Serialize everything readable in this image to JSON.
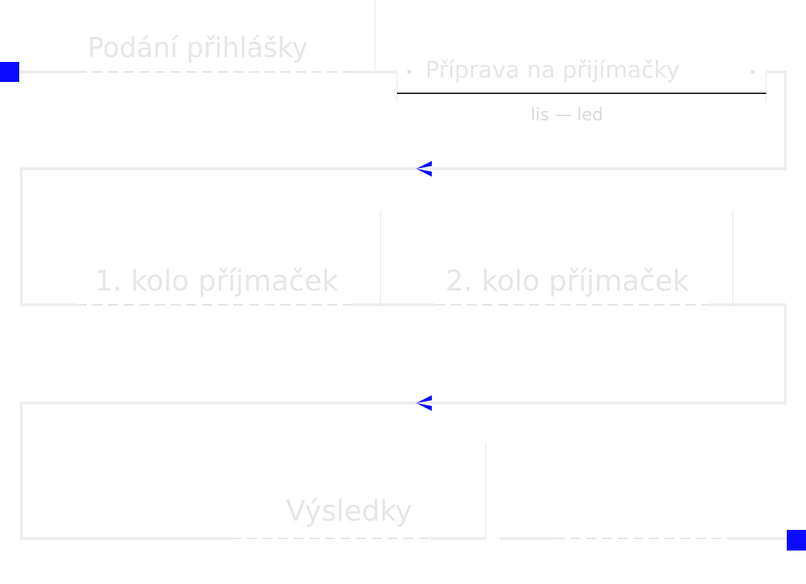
{
  "steps": {
    "podani": "Podání přihlášky",
    "priprava": "Příprava na přijímačky",
    "priprava_date": "lis — led",
    "kolo1": "1. kolo příjmaček",
    "kolo2": "2. kolo příjmaček",
    "vysledky": "Výsledky"
  },
  "colors": {
    "accent": "#0a0aff",
    "track": "#eeeeee",
    "dash": "#e3e3e3",
    "divider": "#222222",
    "text": "#e6e6e6"
  },
  "icons": {
    "start": "square-marker",
    "end": "square-marker",
    "direction": "arrow-left-icon"
  }
}
